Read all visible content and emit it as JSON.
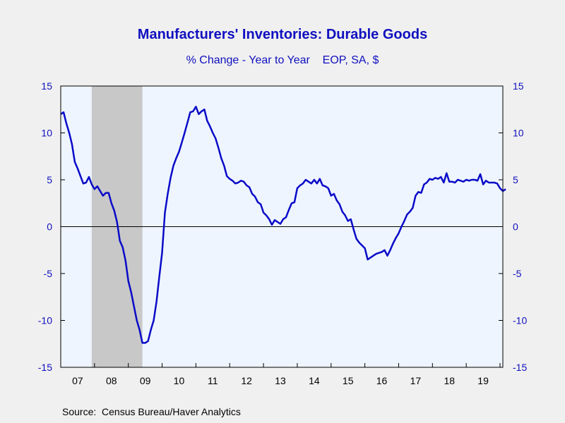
{
  "chart_data": {
    "type": "line",
    "title": "Manufacturers' Inventories: Durable Goods",
    "subtitle": "% Change - Year to Year    EOP, SA, $",
    "source": "Source:  Census Bureau/Haver Analytics",
    "ylim": [
      -15,
      15
    ],
    "y_ticks": [
      "15",
      "10",
      "5",
      "0",
      "-5",
      "-10",
      "-15"
    ],
    "x_categories": [
      "07",
      "08",
      "09",
      "10",
      "11",
      "12",
      "13",
      "14",
      "15",
      "16",
      "17",
      "18",
      "19"
    ],
    "grid": false,
    "recession_shading": {
      "start": "2007-12",
      "end": "2009-06"
    },
    "colors": {
      "line": "#0a0ac8",
      "recession": "#c8c8c8",
      "plot_bg": "#eef5fe",
      "text": "#1010c0"
    },
    "x_start": "2007-01",
    "x_end": "2020-02",
    "series": [
      {
        "x_start": "2007-01",
        "values": [
          12.0,
          12.2,
          11.0,
          10.0,
          8.8,
          6.9,
          6.2,
          5.4,
          4.6,
          4.7,
          5.3,
          4.5,
          4.0,
          4.3,
          3.8,
          3.3,
          3.6,
          3.6,
          2.5,
          1.7,
          0.5,
          -1.5,
          -2.2,
          -3.6,
          -5.8,
          -7.0,
          -8.5,
          -10.0,
          -11.0,
          -12.4,
          -12.4,
          -12.2,
          -11.0,
          -10.0,
          -8.0,
          -5.3,
          -2.8,
          1.5,
          3.5,
          5.2,
          6.5,
          7.3,
          8.0,
          9.0,
          10.0,
          11.1,
          12.2,
          12.3,
          12.8,
          12.0,
          12.3,
          12.5,
          11.3,
          10.7,
          10.0,
          9.4,
          8.4,
          7.3,
          6.5,
          5.4,
          5.1,
          4.9,
          4.6,
          4.7,
          4.9,
          4.8,
          4.4,
          4.2,
          3.5,
          3.2,
          2.6,
          2.4,
          1.5,
          1.2,
          0.8,
          0.2,
          0.7,
          0.5,
          0.3,
          0.8,
          1.0,
          1.8,
          2.5,
          2.6,
          4.1,
          4.4,
          4.6,
          5.0,
          4.8,
          4.6,
          5.0,
          4.6,
          5.1,
          4.4,
          4.3,
          4.1,
          3.3,
          3.5,
          2.8,
          2.4,
          1.6,
          1.2,
          0.6,
          0.8,
          -0.3,
          -1.3,
          -1.7,
          -2.0,
          -2.3,
          -3.5,
          -3.3,
          -3.1,
          -2.9,
          -2.8,
          -2.7,
          -2.5,
          -3.1,
          -2.5,
          -1.8,
          -1.2,
          -0.7,
          0.0,
          0.6,
          1.3,
          1.6,
          2.0,
          3.3,
          3.7,
          3.6,
          4.5,
          4.7,
          5.1,
          5.0,
          5.2,
          5.1,
          5.3,
          4.7,
          5.7,
          4.8,
          4.8,
          4.7,
          5.0,
          4.9,
          4.8,
          5.0,
          4.9,
          5.0,
          5.0,
          4.9,
          5.6,
          4.5,
          4.9,
          4.7,
          4.7,
          4.7,
          4.6,
          4.1,
          3.8,
          4.0
        ]
      }
    ]
  }
}
